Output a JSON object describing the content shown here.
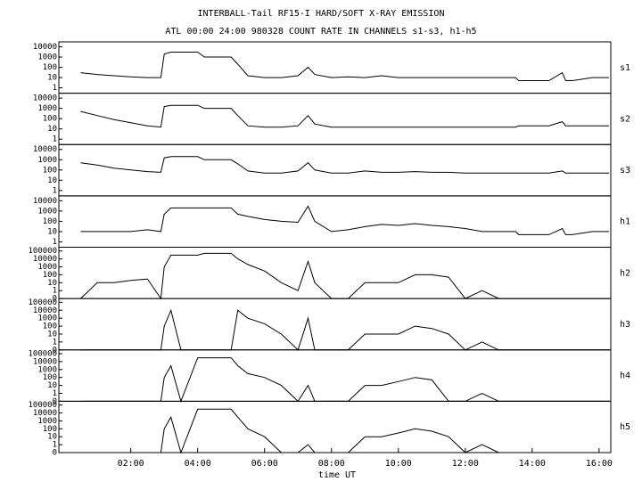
{
  "chart_data": [
    {
      "type": "line",
      "title": "INTERBALL-Tail RF15-I HARD/SOFT X-RAY EMISSION",
      "subtitle": "ATL 00:00 24:00 980328  COUNT RATE IN CHANNELS s1-s3, h1-h5",
      "label": "s1",
      "yscale": "log",
      "color": "#000000",
      "x": [
        0.5,
        1,
        1.5,
        2,
        2.5,
        2.9,
        3.0,
        3.2,
        3.5,
        4.0,
        4.2,
        4.5,
        5.0,
        5.2,
        5.5,
        6.0,
        6.5,
        7.0,
        7.3,
        7.5,
        8.0,
        8.5,
        9.0,
        9.5,
        10.0,
        10.5,
        11.0,
        11.5,
        12.0,
        12.5,
        13.0,
        13.5,
        13.6,
        14.0,
        14.5,
        14.9,
        15.0,
        15.2,
        15.8,
        16.3
      ],
      "values": [
        30,
        20,
        15,
        12,
        10,
        10,
        2000,
        3000,
        3000,
        3000,
        1000,
        1000,
        1000,
        200,
        15,
        10,
        10,
        15,
        100,
        20,
        10,
        12,
        10,
        15,
        10,
        10,
        10,
        10,
        10,
        10,
        10,
        10,
        5,
        5,
        5,
        30,
        5,
        5,
        10,
        10
      ],
      "xlim": [
        -0.15,
        16.35
      ],
      "ylim": [
        0.3,
        30000
      ],
      "yticks": [
        1,
        10,
        100,
        1000,
        10000
      ]
    },
    {
      "type": "line",
      "label": "s2",
      "yscale": "log",
      "color": "#000000",
      "x": [
        0.5,
        1,
        1.5,
        2,
        2.5,
        2.9,
        3.0,
        3.2,
        3.5,
        4.0,
        4.2,
        4.5,
        5.0,
        5.2,
        5.5,
        6.0,
        6.5,
        7.0,
        7.3,
        7.5,
        8.0,
        8.5,
        9.0,
        9.5,
        10.0,
        10.5,
        11.0,
        11.5,
        12.0,
        12.5,
        13.0,
        13.5,
        13.6,
        14.0,
        14.5,
        14.9,
        15.0,
        15.2,
        15.8,
        16.3
      ],
      "values": [
        500,
        200,
        80,
        40,
        20,
        15,
        1500,
        2000,
        2000,
        2000,
        1000,
        1000,
        1000,
        200,
        20,
        15,
        15,
        20,
        200,
        30,
        15,
        15,
        15,
        15,
        15,
        15,
        15,
        15,
        15,
        15,
        15,
        15,
        20,
        20,
        20,
        50,
        20,
        20,
        20,
        20
      ],
      "xlim": [
        -0.15,
        16.35
      ],
      "ylim": [
        0.3,
        30000
      ],
      "yticks": [
        1,
        10,
        100,
        1000,
        10000
      ]
    },
    {
      "type": "line",
      "label": "s3",
      "yscale": "log",
      "color": "#000000",
      "x": [
        0.5,
        1,
        1.5,
        2,
        2.5,
        2.9,
        3.0,
        3.2,
        3.5,
        4.0,
        4.2,
        4.5,
        5.0,
        5.2,
        5.5,
        6.0,
        6.5,
        7.0,
        7.3,
        7.5,
        8.0,
        8.5,
        9.0,
        9.5,
        10.0,
        10.5,
        11.0,
        11.5,
        12.0,
        12.5,
        13.0,
        13.5,
        13.6,
        14.0,
        14.5,
        14.9,
        15.0,
        15.2,
        15.8,
        16.3
      ],
      "values": [
        500,
        300,
        150,
        100,
        70,
        60,
        1500,
        2000,
        2000,
        2000,
        1000,
        1000,
        1000,
        400,
        80,
        50,
        50,
        80,
        500,
        100,
        50,
        50,
        80,
        60,
        60,
        70,
        60,
        60,
        50,
        50,
        50,
        50,
        50,
        50,
        50,
        80,
        50,
        50,
        50,
        50
      ],
      "xlim": [
        -0.15,
        16.35
      ],
      "ylim": [
        0.3,
        30000
      ],
      "yticks": [
        1,
        10,
        100,
        1000,
        10000
      ]
    },
    {
      "type": "line",
      "label": "h1",
      "yscale": "log",
      "color": "#000000",
      "x": [
        0.5,
        1,
        1.5,
        2,
        2.5,
        2.9,
        3.0,
        3.2,
        3.5,
        4.0,
        4.2,
        4.5,
        5.0,
        5.2,
        5.5,
        6.0,
        6.5,
        7.0,
        7.3,
        7.5,
        8.0,
        8.5,
        9.0,
        9.5,
        10.0,
        10.5,
        11.0,
        11.5,
        12.0,
        12.5,
        13.0,
        13.5,
        13.6,
        14.0,
        14.5,
        14.9,
        15.0,
        15.2,
        15.8,
        16.3
      ],
      "values": [
        10,
        10,
        10,
        10,
        15,
        10,
        500,
        2000,
        2000,
        2000,
        2000,
        2000,
        2000,
        500,
        300,
        150,
        100,
        80,
        3000,
        100,
        10,
        15,
        30,
        50,
        40,
        60,
        40,
        30,
        20,
        10,
        10,
        10,
        5,
        5,
        5,
        20,
        5,
        5,
        10,
        10
      ],
      "xlim": [
        -0.15,
        16.35
      ],
      "ylim": [
        0.3,
        30000
      ],
      "yticks": [
        1,
        10,
        100,
        1000,
        10000
      ]
    },
    {
      "type": "line",
      "label": "h2",
      "yscale": "log",
      "color": "#000000",
      "x": [
        0.5,
        1,
        1.5,
        2,
        2.5,
        2.9,
        3.0,
        3.2,
        3.5,
        4.0,
        4.2,
        4.5,
        5.0,
        5.2,
        5.5,
        6.0,
        6.5,
        7.0,
        7.3,
        7.5,
        8.0,
        8.5,
        9.0,
        9.5,
        10.0,
        10.5,
        11.0,
        11.5,
        12.0,
        12.5,
        13.0,
        13.5,
        13.6,
        14.0,
        14.5,
        14.9,
        15.0,
        15.2,
        15.8,
        16.3
      ],
      "values": [
        0,
        10,
        10,
        20,
        30,
        0,
        1000,
        30000,
        30000,
        30000,
        50000,
        50000,
        50000,
        10000,
        2000,
        300,
        10,
        1,
        5000,
        10,
        0,
        0,
        10,
        10,
        10,
        100,
        100,
        50,
        0,
        1,
        0,
        0,
        0,
        0,
        0,
        0,
        0,
        0,
        0,
        0
      ],
      "xlim": [
        -0.15,
        16.35
      ],
      "ylim": [
        0,
        300000
      ],
      "yticks": [
        0,
        1,
        10,
        100,
        1000,
        10000,
        100000
      ]
    },
    {
      "type": "line",
      "label": "h3",
      "yscale": "log",
      "color": "#000000",
      "x": [
        0.5,
        1,
        1.5,
        2,
        2.5,
        2.9,
        3.0,
        3.2,
        3.5,
        4.0,
        4.2,
        4.5,
        5.0,
        5.2,
        5.5,
        6.0,
        6.5,
        7.0,
        7.3,
        7.5,
        8.0,
        8.5,
        9.0,
        9.5,
        10.0,
        10.5,
        11.0,
        11.5,
        12.0,
        12.5,
        13.0,
        13.5,
        13.6,
        14.0,
        14.5,
        14.9,
        15.0,
        15.2,
        15.8,
        16.3
      ],
      "values": [
        0,
        0,
        0,
        0,
        0,
        0,
        100,
        10000,
        0,
        0,
        0,
        0,
        0,
        10000,
        1000,
        200,
        10,
        0,
        1000,
        0,
        0,
        0,
        10,
        10,
        10,
        100,
        50,
        10,
        0,
        1,
        0,
        0,
        0,
        0,
        0,
        0,
        0,
        0,
        0,
        0
      ],
      "xlim": [
        -0.15,
        16.35
      ],
      "ylim": [
        0,
        300000
      ],
      "yticks": [
        0,
        1,
        10,
        100,
        1000,
        10000,
        100000
      ]
    },
    {
      "type": "line",
      "label": "h4",
      "yscale": "log",
      "color": "#000000",
      "x": [
        0.5,
        1,
        1.5,
        2,
        2.5,
        2.9,
        3.0,
        3.2,
        3.5,
        4.0,
        4.2,
        4.5,
        5.0,
        5.2,
        5.5,
        6.0,
        6.5,
        7.0,
        7.3,
        7.5,
        8.0,
        8.5,
        9.0,
        9.5,
        10.0,
        10.5,
        11.0,
        11.5,
        12.0,
        12.5,
        13.0,
        13.5,
        13.6,
        14.0,
        14.5,
        14.9,
        15.0,
        15.2,
        15.8,
        16.3
      ],
      "values": [
        0,
        0,
        0,
        0,
        0,
        0,
        100,
        3000,
        0,
        30000,
        30000,
        30000,
        30000,
        3000,
        300,
        100,
        10,
        0,
        10,
        0,
        0,
        0,
        10,
        10,
        30,
        100,
        50,
        0,
        0,
        1,
        0,
        0,
        0,
        0,
        0,
        0,
        0,
        0,
        0,
        0
      ],
      "xlim": [
        -0.15,
        16.35
      ],
      "ylim": [
        0,
        300000
      ],
      "yticks": [
        0,
        1,
        10,
        100,
        1000,
        10000,
        100000
      ]
    },
    {
      "type": "line",
      "label": "h5",
      "yscale": "log",
      "color": "#000000",
      "xlabel": "time UT",
      "x": [
        0.5,
        1,
        1.5,
        2,
        2.5,
        2.9,
        3.0,
        3.2,
        3.5,
        4.0,
        4.2,
        4.5,
        5.0,
        5.2,
        5.5,
        6.0,
        6.5,
        7.0,
        7.3,
        7.5,
        8.0,
        8.5,
        9.0,
        9.5,
        10.0,
        10.5,
        11.0,
        11.5,
        12.0,
        12.5,
        13.0,
        13.5,
        13.6,
        14.0,
        14.5,
        14.9,
        15.0,
        15.2,
        15.8,
        16.3
      ],
      "values": [
        0,
        0,
        0,
        0,
        0,
        0,
        100,
        3000,
        0,
        30000,
        30000,
        30000,
        30000,
        3000,
        100,
        10,
        0,
        0,
        1,
        0,
        0,
        0,
        10,
        10,
        30,
        100,
        50,
        10,
        0,
        1,
        0,
        0,
        0,
        0,
        0,
        0,
        0,
        0,
        0,
        0
      ],
      "xlim": [
        -0.15,
        16.35
      ],
      "ylim": [
        0,
        300000
      ],
      "yticks": [
        0,
        1,
        10,
        100,
        1000,
        10000,
        100000
      ],
      "xticks": [
        {
          "value": 2,
          "label": "02:00"
        },
        {
          "value": 4,
          "label": "04:00"
        },
        {
          "value": 6,
          "label": "06:00"
        },
        {
          "value": 8,
          "label": "08:00"
        },
        {
          "value": 10,
          "label": "10:00"
        },
        {
          "value": 12,
          "label": "12:00"
        },
        {
          "value": 14,
          "label": "14:00"
        },
        {
          "value": 16,
          "label": "16:00"
        }
      ]
    }
  ]
}
